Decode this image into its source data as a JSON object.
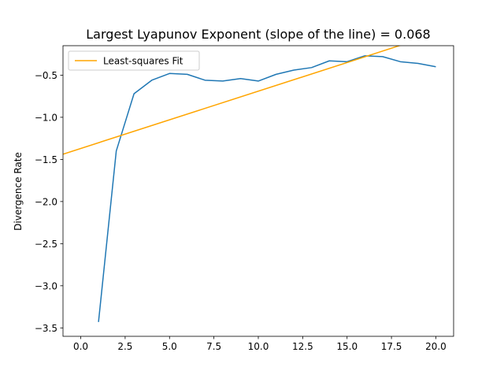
{
  "chart_data": {
    "type": "line",
    "title": "Largest Lyapunov Exponent (slope of the line) = 0.068",
    "xlabel": "",
    "ylabel": "Divergence Rate",
    "xlim": [
      -1.0,
      21.0
    ],
    "ylim": [
      -3.6,
      -0.15
    ],
    "xticks": [
      0.0,
      2.5,
      5.0,
      7.5,
      10.0,
      12.5,
      15.0,
      17.5,
      20.0
    ],
    "xtick_labels": [
      "0.0",
      "2.5",
      "5.0",
      "7.5",
      "10.0",
      "12.5",
      "15.0",
      "17.5",
      "20.0"
    ],
    "yticks": [
      -3.5,
      -3.0,
      -2.5,
      -2.0,
      -1.5,
      -1.0,
      -0.5
    ],
    "ytick_labels": [
      "−3.5",
      "−3.0",
      "−2.5",
      "−2.0",
      "−1.5",
      "−1.0",
      "−0.5"
    ],
    "grid": false,
    "legend_placement": "upper-left",
    "series": [
      {
        "kind": "data",
        "color": "#1f77b4",
        "x": [
          1,
          2,
          3,
          4,
          5,
          6,
          7,
          8,
          9,
          10,
          11,
          12,
          13,
          14,
          15,
          16,
          17,
          18,
          19,
          20
        ],
        "y": [
          -3.43,
          -1.4,
          -0.72,
          -0.56,
          -0.48,
          -0.49,
          -0.56,
          -0.57,
          -0.54,
          -0.57,
          -0.49,
          -0.44,
          -0.41,
          -0.33,
          -0.34,
          -0.27,
          -0.28,
          -0.34,
          -0.36,
          -0.4
        ]
      },
      {
        "kind": "fit",
        "name": "Least-squares Fit",
        "color": "#ffa500",
        "slope": 0.068,
        "intercept": -1.37
      }
    ]
  }
}
